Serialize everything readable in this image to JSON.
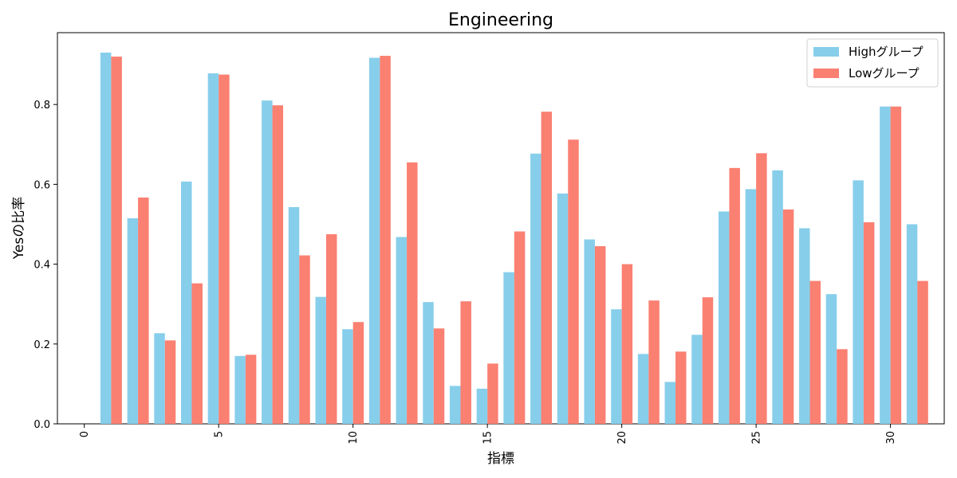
{
  "chart_data": {
    "type": "bar",
    "title": "Engineering",
    "xlabel": "指標",
    "ylabel": "Yesの比率",
    "x": [
      1,
      2,
      3,
      4,
      5,
      6,
      7,
      8,
      9,
      10,
      11,
      12,
      13,
      14,
      15,
      16,
      17,
      18,
      19,
      20,
      21,
      22,
      23,
      24,
      25,
      26,
      27,
      28,
      29,
      30,
      31
    ],
    "xlim": [
      -1,
      32
    ],
    "ylim": [
      0,
      0.98
    ],
    "xticks": [
      0,
      5,
      10,
      15,
      20,
      25,
      30
    ],
    "xtick_labels": [
      "0",
      "5",
      "10",
      "15",
      "20",
      "25",
      "30"
    ],
    "yticks": [
      0.0,
      0.2,
      0.4,
      0.6,
      0.8
    ],
    "ytick_labels": [
      "0.0",
      "0.2",
      "0.4",
      "0.6",
      "0.8"
    ],
    "legend_position": "top-right",
    "grid": false,
    "series": [
      {
        "name": "Highグループ",
        "color": "#87ceeb",
        "values": [
          0.93,
          0.515,
          0.227,
          0.607,
          0.878,
          0.17,
          0.81,
          0.543,
          0.318,
          0.237,
          0.917,
          0.468,
          0.305,
          0.095,
          0.088,
          0.38,
          0.677,
          0.577,
          0.462,
          0.287,
          0.175,
          0.105,
          0.223,
          0.532,
          0.588,
          0.635,
          0.49,
          0.325,
          0.61,
          0.795,
          0.5
        ]
      },
      {
        "name": "Lowグループ",
        "color": "#fa8072",
        "values": [
          0.92,
          0.567,
          0.209,
          0.352,
          0.875,
          0.173,
          0.798,
          0.422,
          0.475,
          0.255,
          0.922,
          0.655,
          0.239,
          0.307,
          0.151,
          0.482,
          0.782,
          0.712,
          0.445,
          0.4,
          0.309,
          0.181,
          0.317,
          0.641,
          0.678,
          0.537,
          0.358,
          0.187,
          0.505,
          0.795,
          0.358
        ]
      }
    ]
  }
}
